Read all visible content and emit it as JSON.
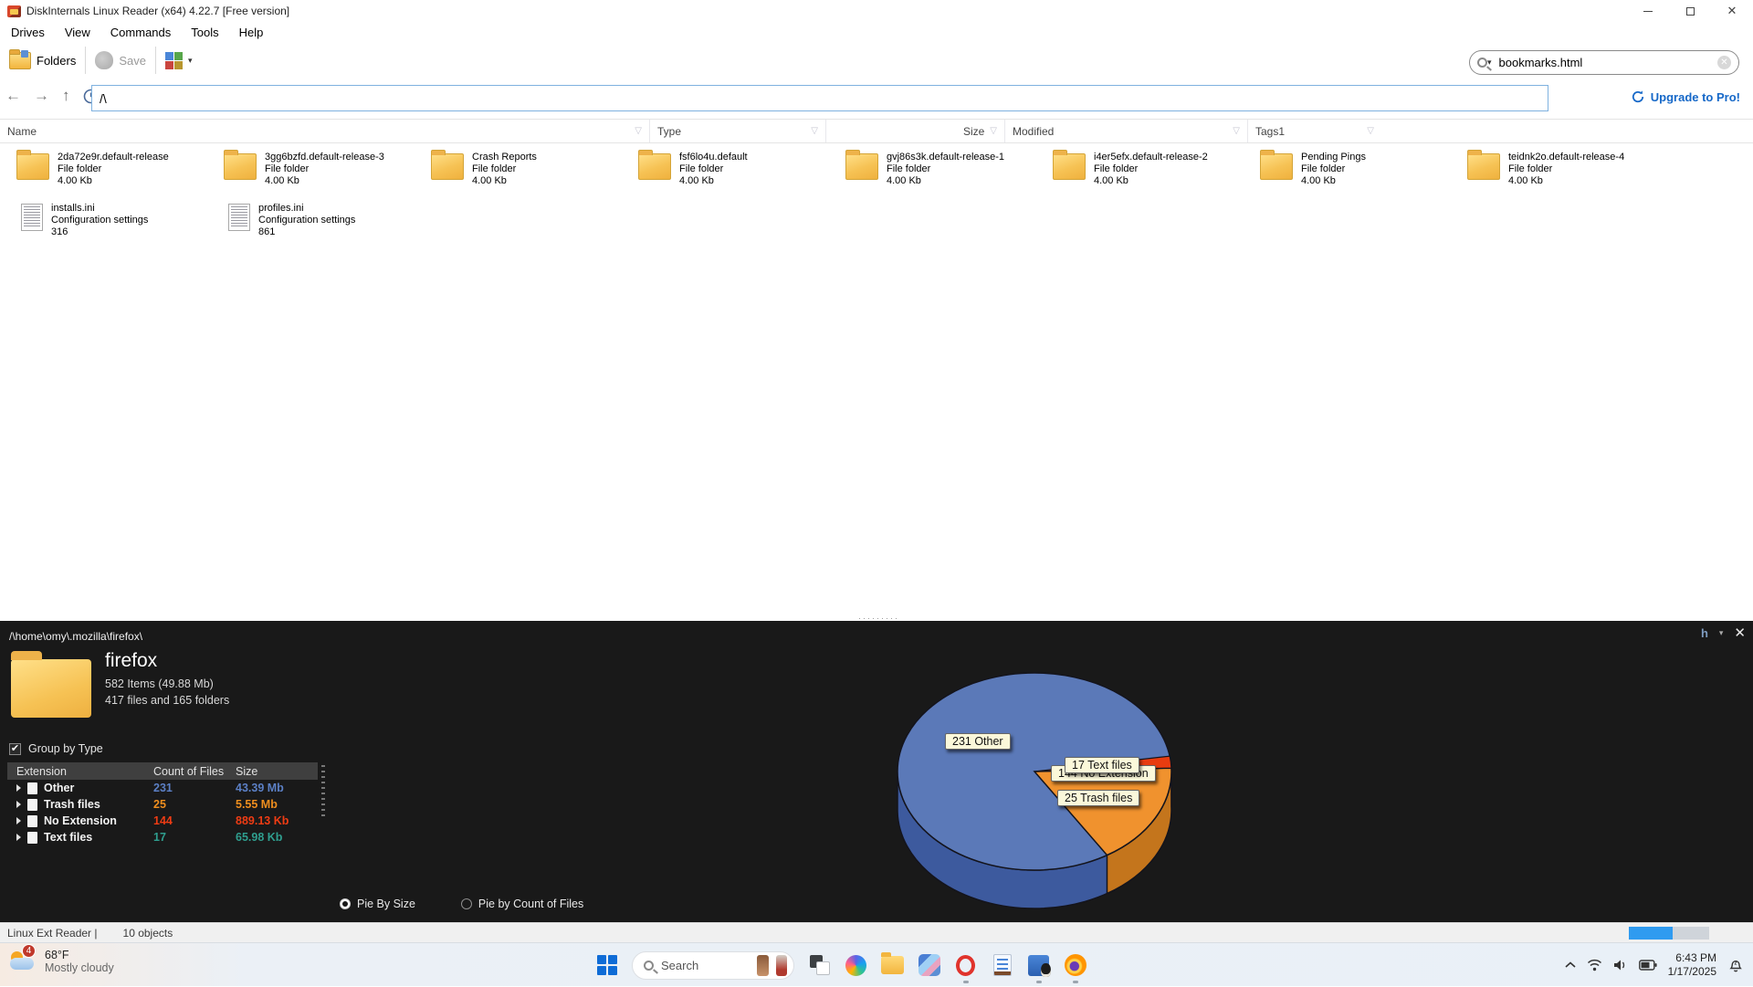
{
  "window": {
    "title": "DiskInternals Linux Reader (x64) 4.22.7 [Free version]"
  },
  "menu": {
    "items": [
      {
        "label": "Drives"
      },
      {
        "label": "View"
      },
      {
        "label": "Commands"
      },
      {
        "label": "Tools"
      },
      {
        "label": "Help"
      }
    ]
  },
  "toolbar": {
    "folders_label": "Folders",
    "save_label": "Save",
    "search_value": "bookmarks.html",
    "upgrade_label": "Upgrade to Pro!"
  },
  "navbar": {
    "path_value": "/\\"
  },
  "columns": {
    "name": "Name",
    "type": "Type",
    "size": "Size",
    "modified": "Modified",
    "tags": "Tags1"
  },
  "files": {
    "tiles": [
      {
        "kind": "folder",
        "name": "2da72e9r.default-release",
        "type": "File folder",
        "size": "4.00 Kb"
      },
      {
        "kind": "folder",
        "name": "3gg6bzfd.default-release-3",
        "type": "File folder",
        "size": "4.00 Kb"
      },
      {
        "kind": "folder",
        "name": "Crash Reports",
        "type": "File folder",
        "size": "4.00 Kb"
      },
      {
        "kind": "folder",
        "name": "fsf6lo4u.default",
        "type": "File folder",
        "size": "4.00 Kb"
      },
      {
        "kind": "folder",
        "name": "gvj86s3k.default-release-1",
        "type": "File folder",
        "size": "4.00 Kb"
      },
      {
        "kind": "folder",
        "name": "i4er5efx.default-release-2",
        "type": "File folder",
        "size": "4.00 Kb"
      },
      {
        "kind": "folder",
        "name": "Pending Pings",
        "type": "File folder",
        "size": "4.00 Kb"
      },
      {
        "kind": "folder",
        "name": "teidnk2o.default-release-4",
        "type": "File folder",
        "size": "4.00 Kb"
      },
      {
        "kind": "ini",
        "name": "installs.ini",
        "type": "Configuration settings",
        "size": "316"
      },
      {
        "kind": "ini",
        "name": "profiles.ini",
        "type": "Configuration settings",
        "size": "861"
      }
    ]
  },
  "panel": {
    "path": "/\\home\\omy\\.mozilla\\firefox\\",
    "controls": {
      "minimize_label": "h",
      "dropdown": "▾",
      "close": "✕"
    },
    "folder": {
      "name": "firefox",
      "items_line": "582 Items (49.88 Mb)",
      "counts_line": "417 files and 165 folders"
    },
    "group_by_label": "Group by Type",
    "checkbox_checked": "✔",
    "table": {
      "headers": [
        "Extension",
        "Count of Files",
        "Size"
      ],
      "rows": [
        {
          "label": "Other",
          "count": "231",
          "size": "43.39 Mb",
          "color": "#5b7fc4"
        },
        {
          "label": "Trash files",
          "count": "25",
          "size": "5.55 Mb",
          "color": "#ef8e1e"
        },
        {
          "label": "No Extension",
          "count": "144",
          "size": "889.13 Kb",
          "color": "#ef3c14"
        },
        {
          "label": "Text files",
          "count": "17",
          "size": "65.98 Kb",
          "color": "#2f9e8e"
        }
      ]
    },
    "radios": [
      {
        "label": "Pie By Size",
        "selected": true
      },
      {
        "label": "Pie by Count of Files",
        "selected": false
      }
    ]
  },
  "chart_data": {
    "type": "pie",
    "style": "3d",
    "mode": "Pie By Size",
    "title": "",
    "slices": [
      {
        "name": "Other",
        "label": "231 Other",
        "count": 231,
        "size_mb": 43.39,
        "color": "#5b79b8"
      },
      {
        "name": "Trash files",
        "label": "25 Trash files",
        "count": 25,
        "size_mb": 5.55,
        "color": "#f0922e"
      },
      {
        "name": "No Extension",
        "label": "144 No Extension",
        "count": 144,
        "size_mb": 0.889,
        "color": "#e83c10"
      },
      {
        "name": "Text files",
        "label": "17 Text files",
        "count": 17,
        "size_mb": 0.066,
        "color": "#2f9e8e"
      }
    ],
    "legend_position": "labels-on-chart"
  },
  "statusbar": {
    "app": "Linux Ext Reader |",
    "objects": "10 objects"
  },
  "taskbar": {
    "weather": {
      "badge": "4",
      "temp": "68°F",
      "condition": "Mostly cloudy"
    },
    "search": {
      "placeholder": "Search"
    },
    "clock": {
      "time": "6:43 PM",
      "date": "1/17/2025"
    },
    "running_apps": [
      "opera",
      "linux-reader",
      "firefox"
    ]
  },
  "icons": {
    "funnel": "▽",
    "back": "←",
    "forward": "→",
    "up": "↑",
    "caret_down": "▾",
    "clear": "✕"
  }
}
